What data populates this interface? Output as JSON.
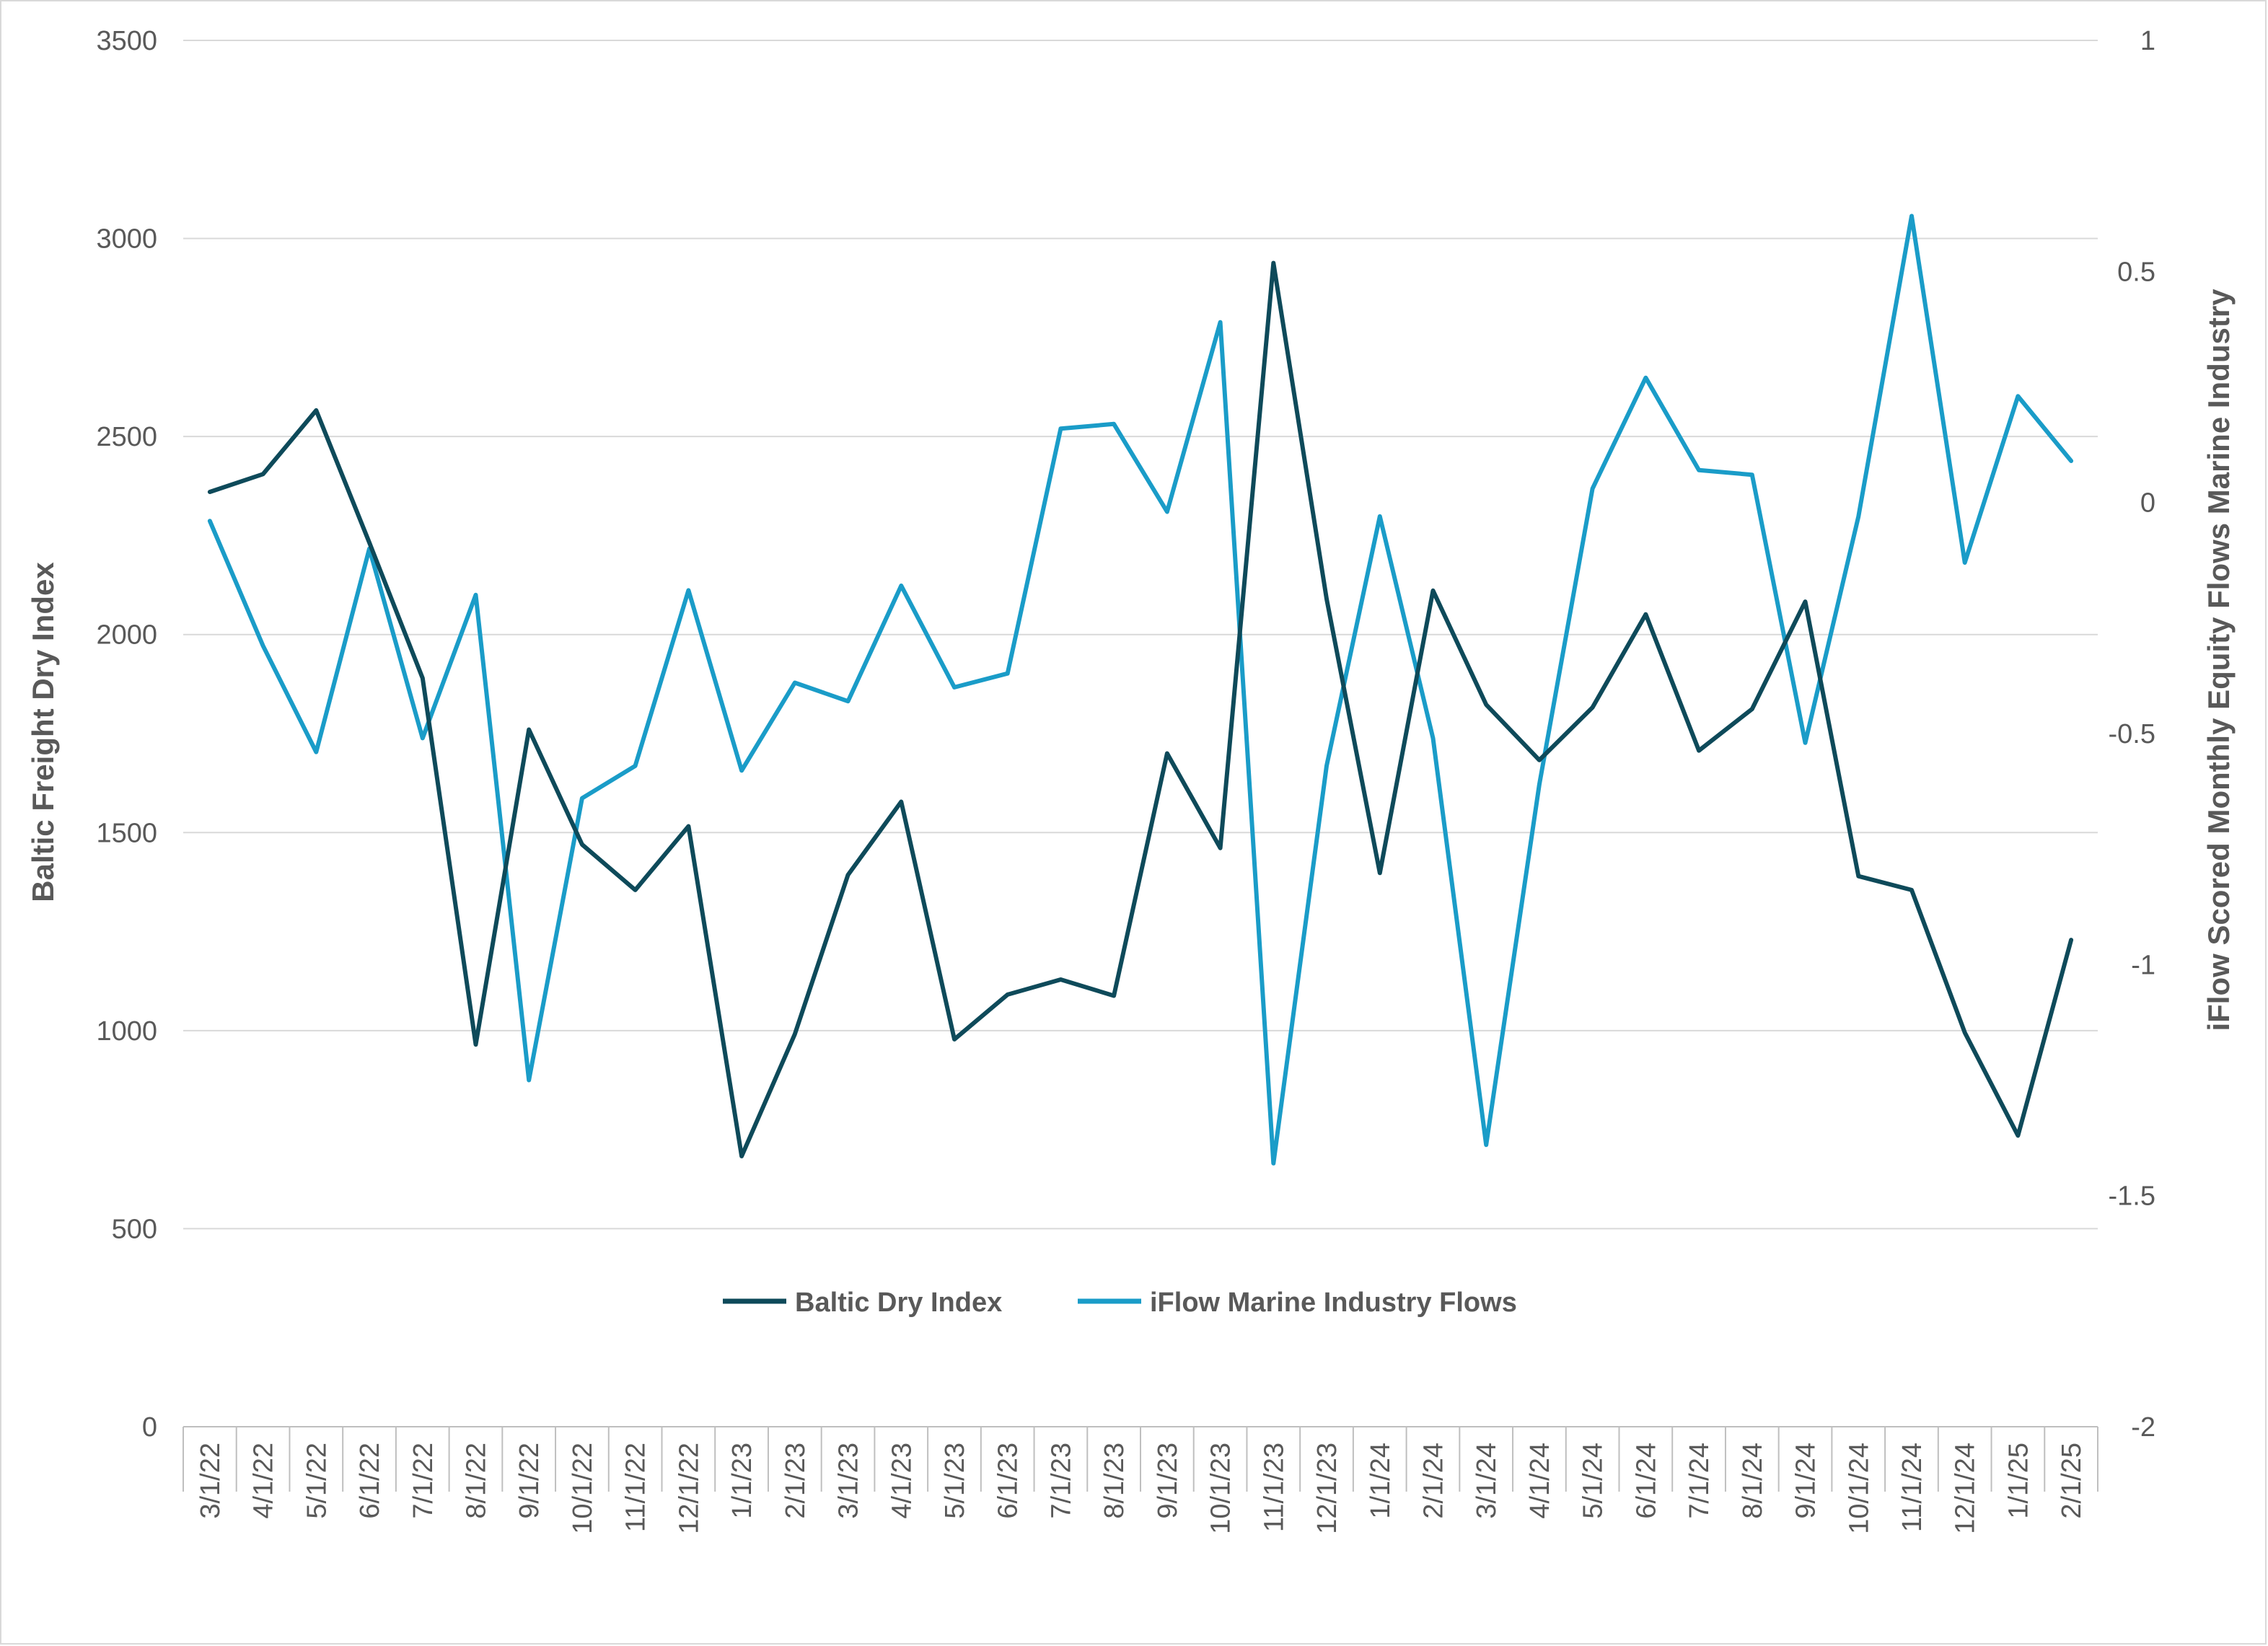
{
  "chart_data": {
    "type": "line",
    "categories": [
      "3/1/22",
      "4/1/22",
      "5/1/22",
      "6/1/22",
      "7/1/22",
      "8/1/22",
      "9/1/22",
      "10/1/22",
      "11/1/22",
      "12/1/22",
      "1/1/23",
      "2/1/23",
      "3/1/23",
      "4/1/23",
      "5/1/23",
      "6/1/23",
      "7/1/23",
      "8/1/23",
      "9/1/23",
      "10/1/23",
      "11/1/23",
      "12/1/23",
      "1/1/24",
      "2/1/24",
      "3/1/24",
      "4/1/24",
      "5/1/24",
      "6/1/24",
      "7/1/24",
      "8/1/24",
      "9/1/24",
      "10/1/24",
      "11/1/24",
      "12/1/24",
      "1/1/25",
      "2/1/25"
    ],
    "series": [
      {
        "name": "Baltic Dry Index",
        "axis": "left",
        "color": "#0e4a5a",
        "values": [
          2360,
          2405,
          2566,
          2232,
          1890,
          965,
          1760,
          1470,
          1355,
          1516,
          683,
          991,
          1393,
          1578,
          978,
          1091,
          1129,
          1088,
          1700,
          1461,
          2938,
          2090,
          1398,
          2111,
          1823,
          1683,
          1816,
          2051,
          1707,
          1812,
          2083,
          1390,
          1355,
          995,
          735,
          1229
        ]
      },
      {
        "name": "iFlow Marine Industry Flows",
        "axis": "right",
        "color": "#1a9cc8",
        "values": [
          -0.04,
          -0.31,
          -0.54,
          -0.1,
          -0.51,
          -0.2,
          -1.25,
          -0.64,
          -0.57,
          -0.19,
          -0.58,
          -0.39,
          -0.43,
          -0.18,
          -0.4,
          -0.37,
          0.16,
          0.17,
          -0.02,
          0.39,
          -1.43,
          -0.57,
          -0.03,
          -0.51,
          -1.39,
          -0.61,
          0.03,
          0.27,
          0.07,
          0.06,
          -0.52,
          -0.03,
          0.62,
          -0.13,
          0.23,
          0.09
        ]
      }
    ],
    "yaxis_left": {
      "label": "Baltic Freight Dry Index",
      "ylim": [
        0,
        3500
      ],
      "ticks": [
        "0",
        "500",
        "1000",
        "1500",
        "2000",
        "2500",
        "3000",
        "3500"
      ]
    },
    "yaxis_right": {
      "label": "iFlow Scored Monthly Equity Flows Marine Industry",
      "ylim": [
        -2,
        1
      ],
      "ticks": [
        "-2",
        "-1.5",
        "-1",
        "-0.5",
        "0",
        "0.5",
        "1"
      ]
    },
    "grid": true,
    "legend": "bottom-center"
  }
}
